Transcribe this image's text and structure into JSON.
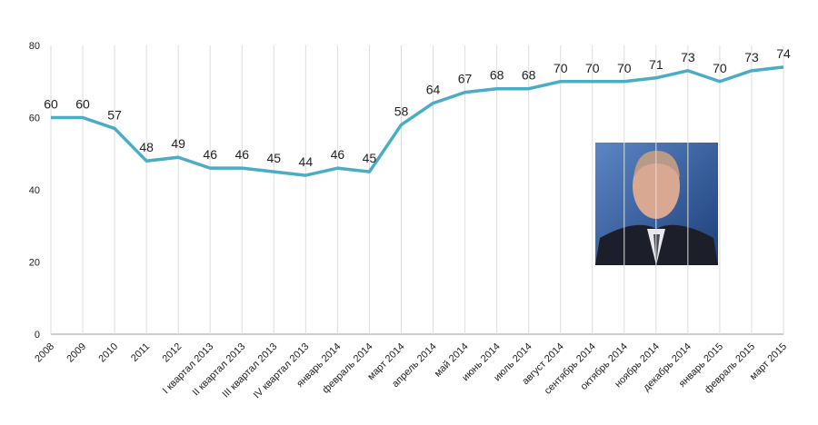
{
  "chart_data": {
    "type": "line",
    "categories": [
      "2008",
      "2009",
      "2010",
      "2011",
      "2012",
      "I квартал 2013",
      "II квартал 2013",
      "III квартал 2013",
      "IV квартал 2013",
      "январь 2014",
      "февраль 2014",
      "март 2014",
      "апрель 2014",
      "май 2014",
      "июнь 2014",
      "июль 2014",
      "август 2014",
      "сентябрь 2014",
      "октябрь 2014",
      "ноябрь 2014",
      "декабрь 2014",
      "январь 2015",
      "февраль 2015",
      "март 2015"
    ],
    "values": [
      60,
      60,
      57,
      48,
      49,
      46,
      46,
      45,
      44,
      46,
      45,
      58,
      64,
      67,
      68,
      68,
      70,
      70,
      70,
      71,
      73,
      70,
      73,
      74
    ],
    "color": "#4bacc6",
    "ylim": [
      0,
      80
    ],
    "yticks": [
      0,
      20,
      40,
      60,
      80
    ],
    "grid": true
  }
}
